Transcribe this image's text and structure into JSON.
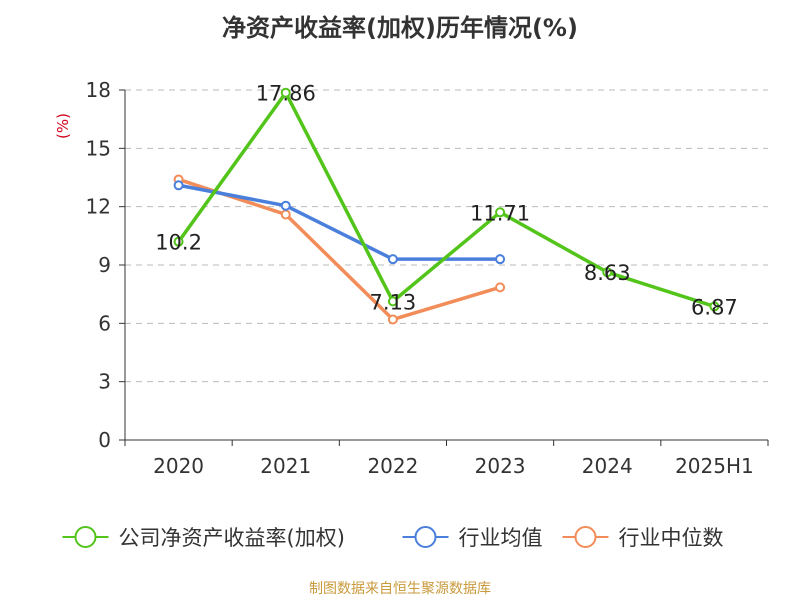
{
  "chart_data": {
    "type": "line",
    "title": "净资产收益率(加权)历年情况(%)",
    "ylabel": "(%)",
    "xlabel": "",
    "categories": [
      "2020",
      "2021",
      "2022",
      "2023",
      "2024",
      "2025H1"
    ],
    "ylim": [
      0,
      18
    ],
    "yticks": [
      0,
      3,
      6,
      9,
      12,
      15,
      18
    ],
    "grid": "horizontal-dashed",
    "legend_position": "bottom",
    "series": [
      {
        "name": "公司净资产收益率(加权)",
        "color": "#52c41a",
        "values": [
          10.2,
          17.86,
          7.13,
          11.71,
          8.63,
          6.87
        ],
        "labels": [
          "10.2",
          "17.86",
          "7.13",
          "11.71",
          "8.63",
          "6.87"
        ]
      },
      {
        "name": "行业均值",
        "color": "#4a7fdc",
        "values": [
          13.1,
          12.05,
          9.3,
          9.3,
          null,
          null
        ]
      },
      {
        "name": "行业中位数",
        "color": "#f28c59",
        "values": [
          13.4,
          11.6,
          6.2,
          7.85,
          null,
          null
        ]
      }
    ]
  },
  "source": "制图数据来自恒生聚源数据库",
  "colors": {
    "unit": "#d0021b",
    "source": "#c89a3c",
    "axis": "#333333",
    "grid": "#bbbbbb"
  }
}
